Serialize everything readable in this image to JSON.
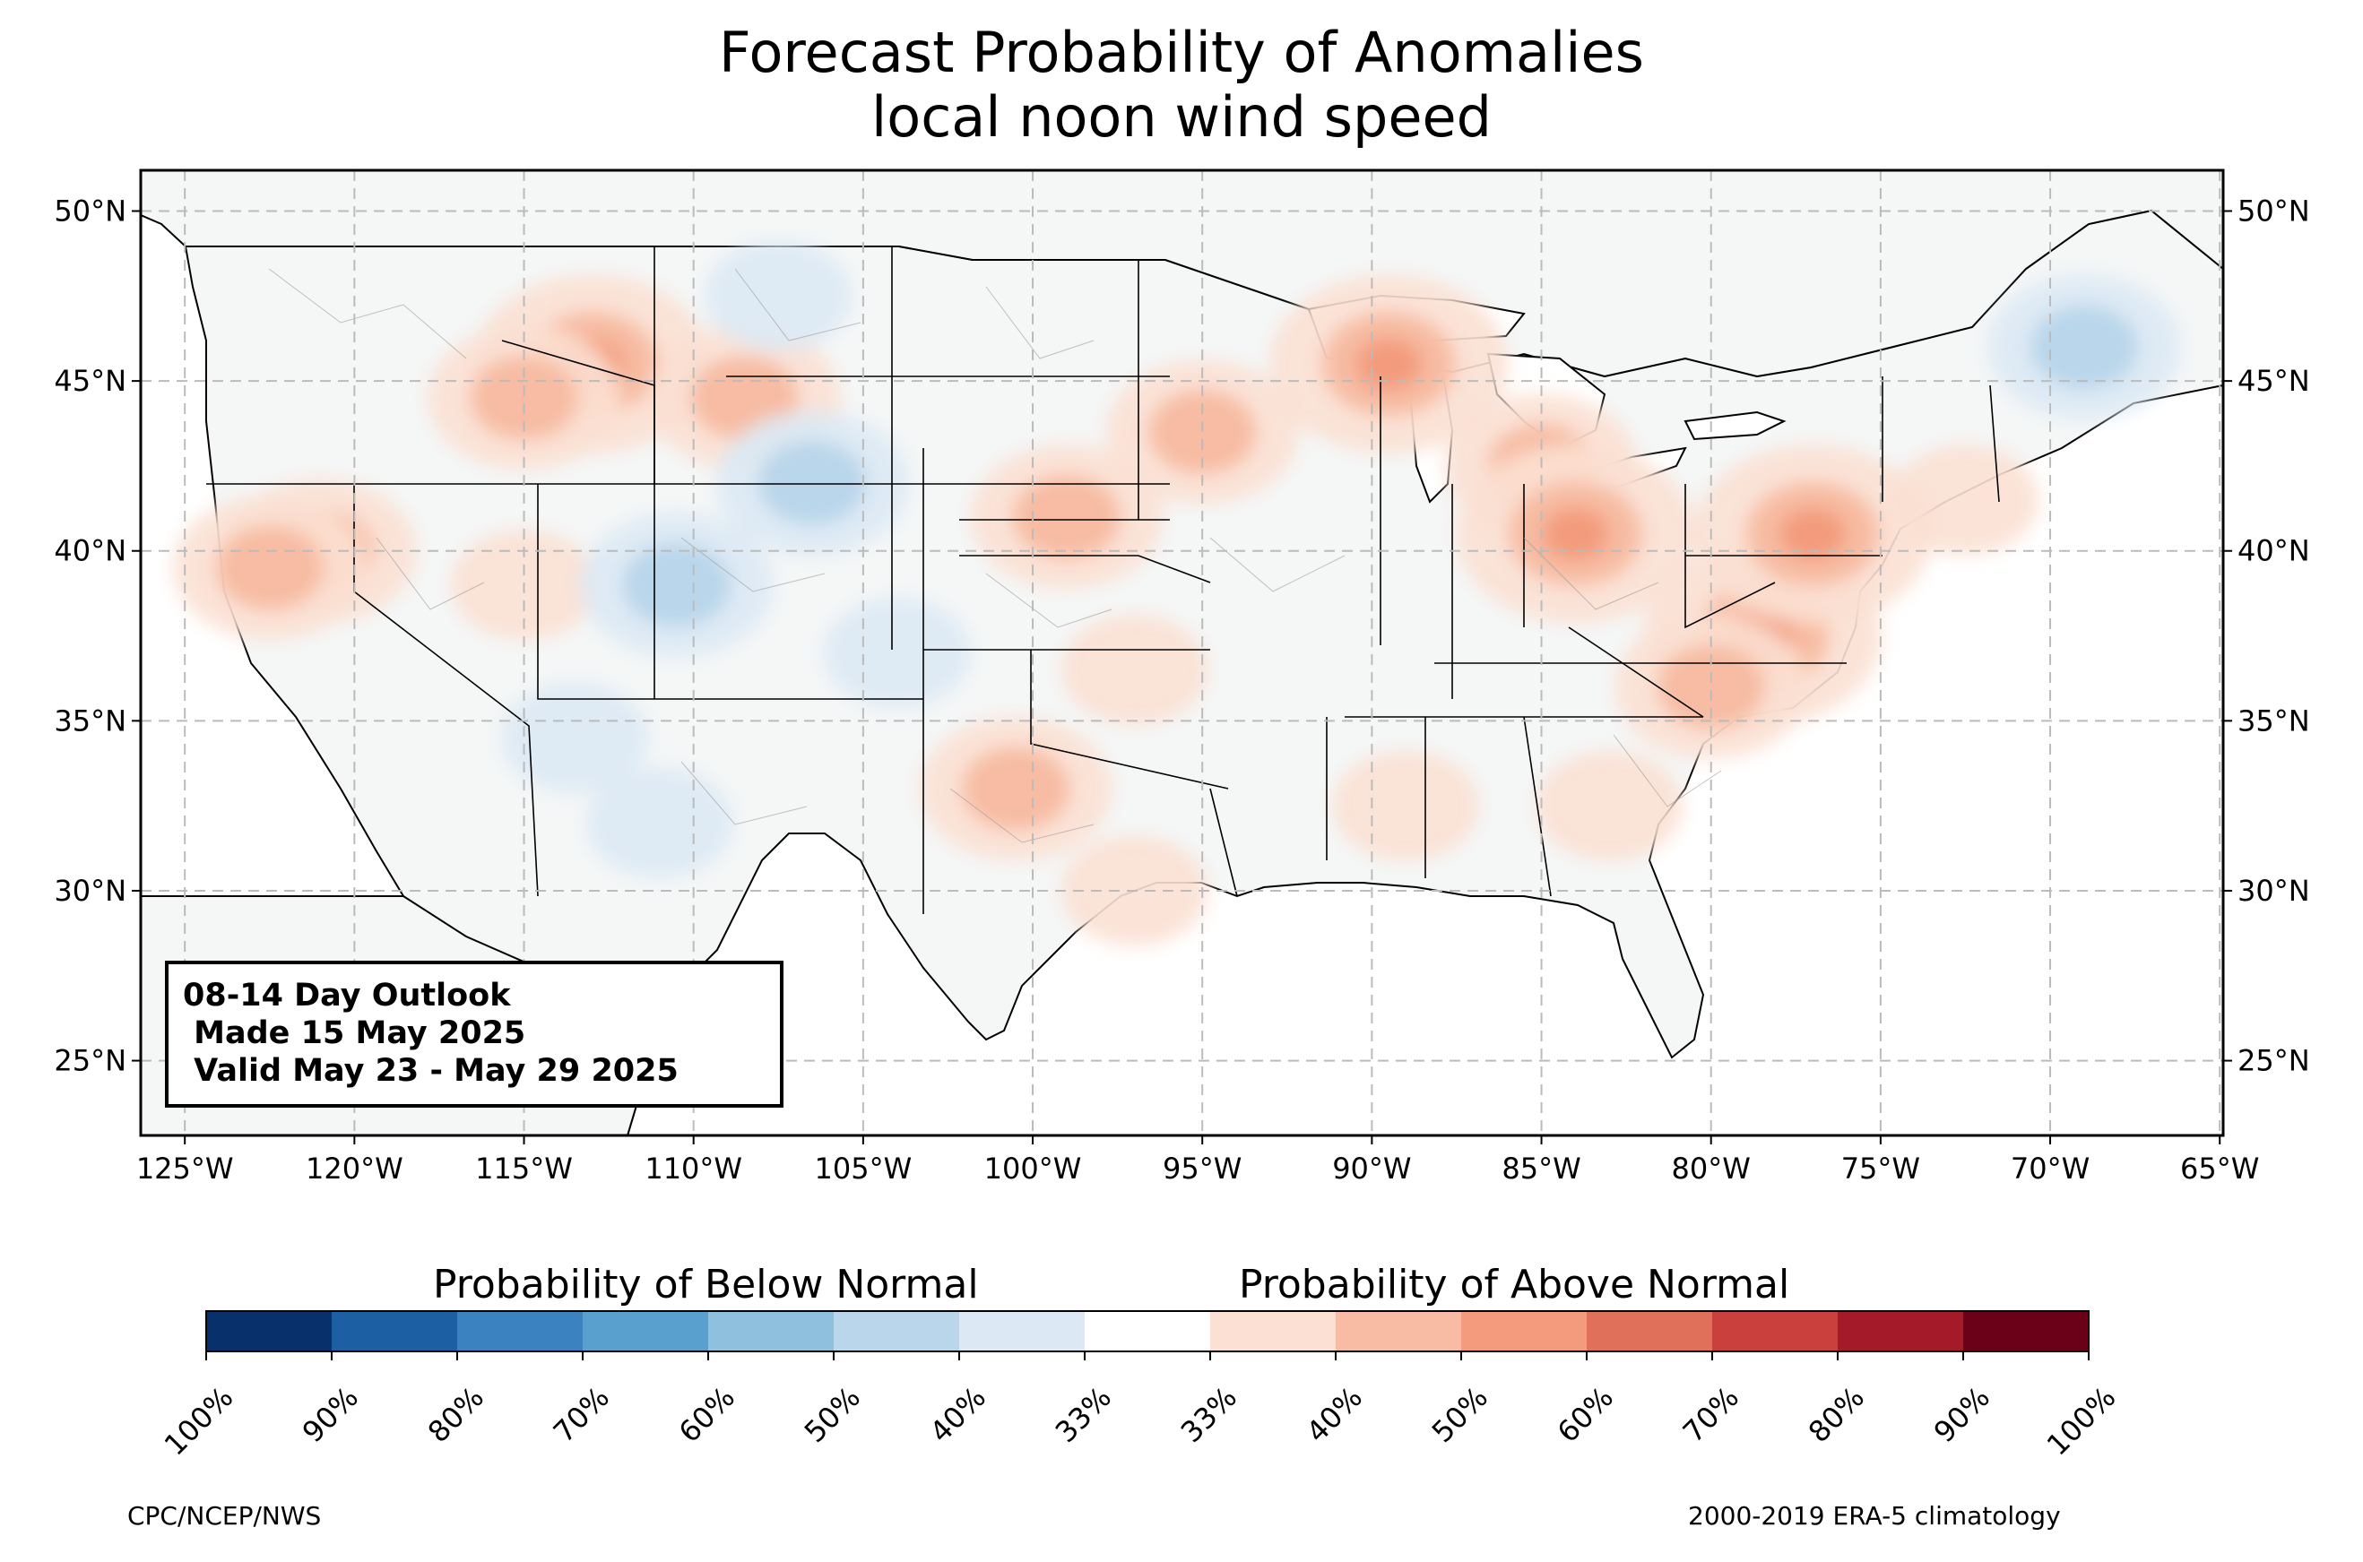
{
  "title": {
    "line1": "Forecast Probability of Anomalies",
    "line2": "local noon wind speed"
  },
  "outlook": {
    "line1": "08-14 Day Outlook",
    "line2": " Made 15 May 2025",
    "line3": " Valid May 23 - May 29 2025"
  },
  "axes": {
    "lon_ticks": [
      "125°W",
      "120°W",
      "115°W",
      "110°W",
      "105°W",
      "100°W",
      "95°W",
      "90°W",
      "85°W",
      "80°W",
      "75°W",
      "70°W",
      "65°W"
    ],
    "lat_ticks": [
      "50°N",
      "45°N",
      "40°N",
      "35°N",
      "30°N",
      "25°N"
    ],
    "lon_range": [
      -126.3,
      -64.9
    ],
    "lat_range": [
      22.8,
      51.2
    ],
    "grid": "dashed"
  },
  "colorbar": {
    "below_label": "Probability of Below Normal",
    "above_label": "Probability of Above Normal",
    "tick_labels": [
      "100%",
      "90%",
      "80%",
      "70%",
      "60%",
      "50%",
      "40%",
      "33%",
      "33%",
      "40%",
      "50%",
      "60%",
      "70%",
      "80%",
      "90%",
      "100%"
    ],
    "colors": [
      "#08306b",
      "#1c5fa3",
      "#3a83c0",
      "#5aa0cf",
      "#8fc1de",
      "#b9d6ea",
      "#dce9f4",
      "#ffffff",
      "#fbe0d3",
      "#f7bca3",
      "#f39b7c",
      "#e07059",
      "#c9403c",
      "#a51a28",
      "#6b0119"
    ]
  },
  "anomalies": [
    {
      "cat": "above",
      "prob": 60,
      "lon": -113,
      "lat": 45.5
    },
    {
      "cat": "above",
      "prob": 50,
      "lon": -115,
      "lat": 44.5
    },
    {
      "cat": "above",
      "prob": 50,
      "lon": -108.5,
      "lat": 44.5
    },
    {
      "cat": "above",
      "prob": 50,
      "lon": -121,
      "lat": 40
    },
    {
      "cat": "above",
      "prob": 50,
      "lon": -122.5,
      "lat": 39.5
    },
    {
      "cat": "above",
      "prob": 40,
      "lon": -115,
      "lat": 39
    },
    {
      "cat": "above",
      "prob": 60,
      "lon": -89.5,
      "lat": 45.5
    },
    {
      "cat": "above",
      "prob": 50,
      "lon": -85,
      "lat": 42.5
    },
    {
      "cat": "above",
      "prob": 60,
      "lon": -84,
      "lat": 40.5
    },
    {
      "cat": "above",
      "prob": 60,
      "lon": -78.5,
      "lat": 37.5
    },
    {
      "cat": "above",
      "prob": 60,
      "lon": -77,
      "lat": 40.5
    },
    {
      "cat": "above",
      "prob": 50,
      "lon": -80,
      "lat": 36
    },
    {
      "cat": "above",
      "prob": 50,
      "lon": -100.5,
      "lat": 33
    },
    {
      "cat": "above",
      "prob": 50,
      "lon": -95,
      "lat": 43.5
    },
    {
      "cat": "above",
      "prob": 50,
      "lon": -99,
      "lat": 41
    },
    {
      "cat": "above",
      "prob": 40,
      "lon": -89,
      "lat": 32.5
    },
    {
      "cat": "above",
      "prob": 40,
      "lon": -83,
      "lat": 32.5
    },
    {
      "cat": "above",
      "prob": 40,
      "lon": -97,
      "lat": 30
    },
    {
      "cat": "above",
      "prob": 40,
      "lon": -97,
      "lat": 36.5
    },
    {
      "cat": "above",
      "prob": 40,
      "lon": -72.5,
      "lat": 41.5
    },
    {
      "cat": "below",
      "prob": 50,
      "lon": -106.5,
      "lat": 42
    },
    {
      "cat": "below",
      "prob": 40,
      "lon": -107.5,
      "lat": 47.5
    },
    {
      "cat": "below",
      "prob": 50,
      "lon": -110.5,
      "lat": 39
    },
    {
      "cat": "below",
      "prob": 40,
      "lon": -113.5,
      "lat": 34.5
    },
    {
      "cat": "below",
      "prob": 40,
      "lon": -111,
      "lat": 32
    },
    {
      "cat": "below",
      "prob": 40,
      "lon": -104,
      "lat": 37
    },
    {
      "cat": "below",
      "prob": 50,
      "lon": -69,
      "lat": 46
    }
  ],
  "footer": {
    "left": "CPC/NCEP/NWS",
    "right": "2000-2019 ERA-5 climatology"
  }
}
